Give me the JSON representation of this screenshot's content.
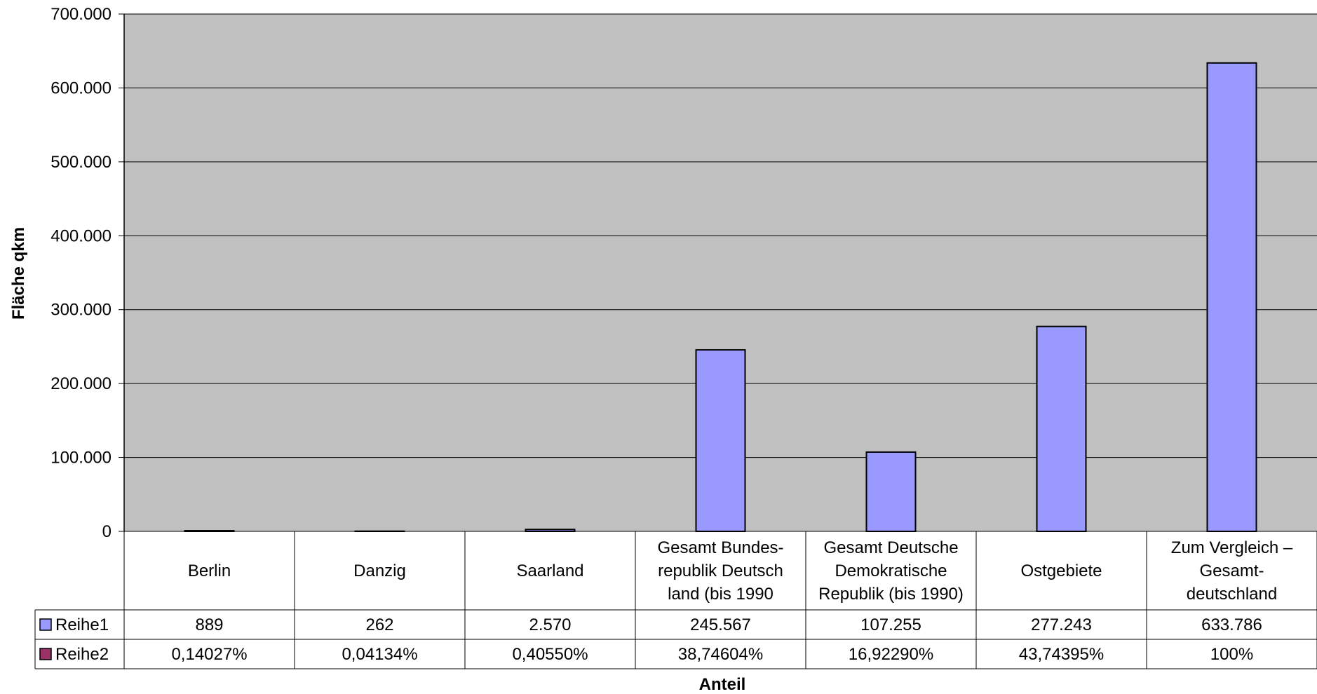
{
  "chart_data": {
    "type": "bar",
    "ylabel": "Fläche qkm",
    "xlabel": "Anteil",
    "ylim": [
      0,
      700000
    ],
    "y_ticks": [
      "0",
      "100.000",
      "200.000",
      "300.000",
      "400.000",
      "500.000",
      "600.000",
      "700.000"
    ],
    "grid": true,
    "categories": [
      "Berlin",
      "Danzig",
      "Saarland",
      "Gesamt Bundes-\nrepublik Deutsch\nland (bis 1990",
      "Gesamt Deutsche\nDemokratische\nRepublik (bis 1990)",
      "Ostgebiete",
      "Zum Vergleich –\nGesamt-\ndeutschland"
    ],
    "series": [
      {
        "name": "Reihe1",
        "color": "#9999ff",
        "values": [
          889,
          262,
          2570,
          245567,
          107255,
          277243,
          633786
        ],
        "labels": [
          "889",
          "262",
          "2.570",
          "245.567",
          "107.255",
          "277.243",
          "633.786"
        ]
      },
      {
        "name": "Reihe2",
        "color": "#993366",
        "values": [
          0.14027,
          0.04134,
          0.4055,
          38.74604,
          16.9229,
          43.74395,
          100
        ],
        "labels": [
          "0,14027%",
          "0,04134%",
          "0,40550%",
          "38,74604%",
          "16,92290%",
          "43,74395%",
          "100%"
        ]
      }
    ],
    "plot_background": "#c0c0c0"
  }
}
